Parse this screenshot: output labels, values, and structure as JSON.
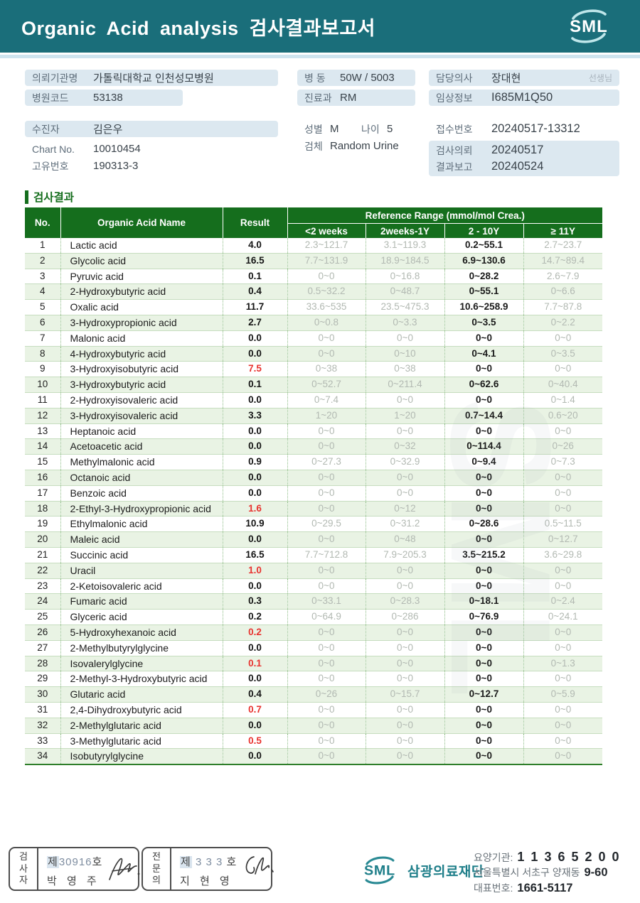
{
  "header": {
    "title": "Organic  Acid  analysis 검사결과보고서",
    "logo_text": "SML"
  },
  "info": {
    "client_label": "의뢰기관명",
    "client_value": "가톨릭대학교 인천성모병원",
    "hospital_code_label": "병원코드",
    "hospital_code_value": "53138",
    "patient_label": "수진자",
    "patient_value": "김은우",
    "chart_label": "Chart No.",
    "chart_value": "10010454",
    "uid_label": "고유번호",
    "uid_value": "190313-3",
    "ward_label": "병  동",
    "ward_value": "50W / 5003",
    "dept_label": "진료과",
    "dept_value": "RM",
    "sex_label": "성별",
    "sex_value": "M",
    "age_label": "나이",
    "age_value": "5",
    "specimen_label": "검체",
    "specimen_value": "Random Urine",
    "doctor_label": "담당의사",
    "doctor_value": "장대현",
    "doctor_suffix": "선생님",
    "clinical_label": "임상정보",
    "clinical_value": "I685M1Q50",
    "receipt_label": "접수번호",
    "receipt_value": "20240517-13312",
    "request_label": "검사의뢰",
    "request_value": "20240517",
    "report_label": "결과보고",
    "report_value": "20240524"
  },
  "section": {
    "title": "검사결과"
  },
  "table": {
    "headers": {
      "no": "No.",
      "name": "Organic Acid Name",
      "result": "Result",
      "ref_group": "Reference Range (mmol/mol Crea.)",
      "sub": [
        "<2 weeks",
        "2weeks-1Y",
        "2 - 10Y",
        "≥ 11Y"
      ]
    },
    "active_range_index": 2,
    "rows": [
      {
        "no": 1,
        "name": "Lactic acid",
        "result": "4.0",
        "abnormal": false,
        "ranges": [
          "2.3~121.7",
          "3.1~119.3",
          "0.2~55.1",
          "2.7~23.7"
        ]
      },
      {
        "no": 2,
        "name": "Glycolic acid",
        "result": "16.5",
        "abnormal": false,
        "ranges": [
          "7.7~131.9",
          "18.9~184.5",
          "6.9~130.6",
          "14.7~89.4"
        ]
      },
      {
        "no": 3,
        "name": "Pyruvic acid",
        "result": "0.1",
        "abnormal": false,
        "ranges": [
          "0~0",
          "0~16.8",
          "0~28.2",
          "2.6~7.9"
        ]
      },
      {
        "no": 4,
        "name": "2-Hydroxybutyric acid",
        "result": "0.4",
        "abnormal": false,
        "ranges": [
          "0.5~32.2",
          "0~48.7",
          "0~55.1",
          "0~6.6"
        ]
      },
      {
        "no": 5,
        "name": "Oxalic acid",
        "result": "11.7",
        "abnormal": false,
        "ranges": [
          "33.6~535",
          "23.5~475.3",
          "10.6~258.9",
          "7.7~87.8"
        ]
      },
      {
        "no": 6,
        "name": "3-Hydroxypropionic acid",
        "result": "2.7",
        "abnormal": false,
        "ranges": [
          "0~0.8",
          "0~3.3",
          "0~3.5",
          "0~2.2"
        ]
      },
      {
        "no": 7,
        "name": "Malonic acid",
        "result": "0.0",
        "abnormal": false,
        "ranges": [
          "0~0",
          "0~0",
          "0~0",
          "0~0"
        ]
      },
      {
        "no": 8,
        "name": "4-Hydroxybutyric acid",
        "result": "0.0",
        "abnormal": false,
        "ranges": [
          "0~0",
          "0~10",
          "0~4.1",
          "0~3.5"
        ]
      },
      {
        "no": 9,
        "name": "3-Hydroxyisobutyric acid",
        "result": "7.5",
        "abnormal": true,
        "ranges": [
          "0~38",
          "0~38",
          "0~0",
          "0~0"
        ]
      },
      {
        "no": 10,
        "name": "3-Hydroxybutyric acid",
        "result": "0.1",
        "abnormal": false,
        "ranges": [
          "0~52.7",
          "0~211.4",
          "0~62.6",
          "0~40.4"
        ]
      },
      {
        "no": 11,
        "name": "2-Hydroxyisovaleric acid",
        "result": "0.0",
        "abnormal": false,
        "ranges": [
          "0~7.4",
          "0~0",
          "0~0",
          "0~1.4"
        ]
      },
      {
        "no": 12,
        "name": "3-Hydroxyisovaleric acid",
        "result": "3.3",
        "abnormal": false,
        "ranges": [
          "1~20",
          "1~20",
          "0.7~14.4",
          "0.6~20"
        ]
      },
      {
        "no": 13,
        "name": "Heptanoic acid",
        "result": "0.0",
        "abnormal": false,
        "ranges": [
          "0~0",
          "0~0",
          "0~0",
          "0~0"
        ]
      },
      {
        "no": 14,
        "name": "Acetoacetic acid",
        "result": "0.0",
        "abnormal": false,
        "ranges": [
          "0~0",
          "0~32",
          "0~114.4",
          "0~26"
        ]
      },
      {
        "no": 15,
        "name": "Methylmalonic acid",
        "result": "0.9",
        "abnormal": false,
        "ranges": [
          "0~27.3",
          "0~32.9",
          "0~9.4",
          "0~7.3"
        ]
      },
      {
        "no": 16,
        "name": "Octanoic acid",
        "result": "0.0",
        "abnormal": false,
        "ranges": [
          "0~0",
          "0~0",
          "0~0",
          "0~0"
        ]
      },
      {
        "no": 17,
        "name": "Benzoic acid",
        "result": "0.0",
        "abnormal": false,
        "ranges": [
          "0~0",
          "0~0",
          "0~0",
          "0~0"
        ]
      },
      {
        "no": 18,
        "name": "2-Ethyl-3-Hydroxypropionic acid",
        "result": "1.6",
        "abnormal": true,
        "ranges": [
          "0~0",
          "0~12",
          "0~0",
          "0~0"
        ]
      },
      {
        "no": 19,
        "name": "Ethylmalonic acid",
        "result": "10.9",
        "abnormal": false,
        "ranges": [
          "0~29.5",
          "0~31.2",
          "0~28.6",
          "0.5~11.5"
        ]
      },
      {
        "no": 20,
        "name": "Maleic acid",
        "result": "0.0",
        "abnormal": false,
        "ranges": [
          "0~0",
          "0~48",
          "0~0",
          "0~12.7"
        ]
      },
      {
        "no": 21,
        "name": "Succinic acid",
        "result": "16.5",
        "abnormal": false,
        "ranges": [
          "7.7~712.8",
          "7.9~205.3",
          "3.5~215.2",
          "3.6~29.8"
        ]
      },
      {
        "no": 22,
        "name": "Uracil",
        "result": "1.0",
        "abnormal": true,
        "ranges": [
          "0~0",
          "0~0",
          "0~0",
          "0~0"
        ]
      },
      {
        "no": 23,
        "name": "2-Ketoisovaleric acid",
        "result": "0.0",
        "abnormal": false,
        "ranges": [
          "0~0",
          "0~0",
          "0~0",
          "0~0"
        ]
      },
      {
        "no": 24,
        "name": "Fumaric acid",
        "result": "0.3",
        "abnormal": false,
        "ranges": [
          "0~33.1",
          "0~28.3",
          "0~18.1",
          "0~2.4"
        ]
      },
      {
        "no": 25,
        "name": "Glyceric acid",
        "result": "0.2",
        "abnormal": false,
        "ranges": [
          "0~64.9",
          "0~286",
          "0~76.9",
          "0~24.1"
        ]
      },
      {
        "no": 26,
        "name": "5-Hydroxyhexanoic acid",
        "result": "0.2",
        "abnormal": true,
        "ranges": [
          "0~0",
          "0~0",
          "0~0",
          "0~0"
        ]
      },
      {
        "no": 27,
        "name": "2-Methylbutyrylglycine",
        "result": "0.0",
        "abnormal": false,
        "ranges": [
          "0~0",
          "0~0",
          "0~0",
          "0~0"
        ]
      },
      {
        "no": 28,
        "name": "Isovalerylglycine",
        "result": "0.1",
        "abnormal": true,
        "ranges": [
          "0~0",
          "0~0",
          "0~0",
          "0~1.3"
        ]
      },
      {
        "no": 29,
        "name": "2-Methyl-3-Hydroxybutyric acid",
        "result": "0.0",
        "abnormal": false,
        "ranges": [
          "0~0",
          "0~0",
          "0~0",
          "0~0"
        ]
      },
      {
        "no": 30,
        "name": "Glutaric acid",
        "result": "0.4",
        "abnormal": false,
        "ranges": [
          "0~26",
          "0~15.7",
          "0~12.7",
          "0~5.9"
        ]
      },
      {
        "no": 31,
        "name": "2,4-Dihydroxybutyric acid",
        "result": "0.7",
        "abnormal": true,
        "ranges": [
          "0~0",
          "0~0",
          "0~0",
          "0~0"
        ]
      },
      {
        "no": 32,
        "name": "2-Methylglutaric acid",
        "result": "0.0",
        "abnormal": false,
        "ranges": [
          "0~0",
          "0~0",
          "0~0",
          "0~0"
        ]
      },
      {
        "no": 33,
        "name": "3-Methylglutaric acid",
        "result": "0.5",
        "abnormal": true,
        "ranges": [
          "0~0",
          "0~0",
          "0~0",
          "0~0"
        ]
      },
      {
        "no": 34,
        "name": "Isobutyrylglycine",
        "result": "0.0",
        "abnormal": false,
        "ranges": [
          "0~0",
          "0~0",
          "0~0",
          "0~0"
        ]
      }
    ]
  },
  "footer": {
    "stamp1": {
      "role": "검사자",
      "cert_prefix": "제",
      "cert_no": "30916",
      "cert_suffix": "호",
      "name": "박 영 주"
    },
    "stamp2": {
      "role": "전문의",
      "cert_prefix": "제",
      "cert_no": " 3 3 3 ",
      "cert_suffix": "호",
      "name": "지 현 영"
    },
    "org": {
      "logo_text": "SML",
      "org_name": "삼광의료재단"
    },
    "contact": {
      "care_label": "요양기관:",
      "care_value": "1 1 3 6 5 2 0 0",
      "addr_text": "서울특별시 서초구 양재동",
      "addr_no": "9-60",
      "tel_label": "대표번호:",
      "tel_value": "1661-5117"
    }
  },
  "colors": {
    "teal": "#1a6e7a",
    "green": "#156e1d",
    "red": "#e8332f",
    "alt_row": "#e9f3e4",
    "label_bg": "#dce8f0"
  }
}
